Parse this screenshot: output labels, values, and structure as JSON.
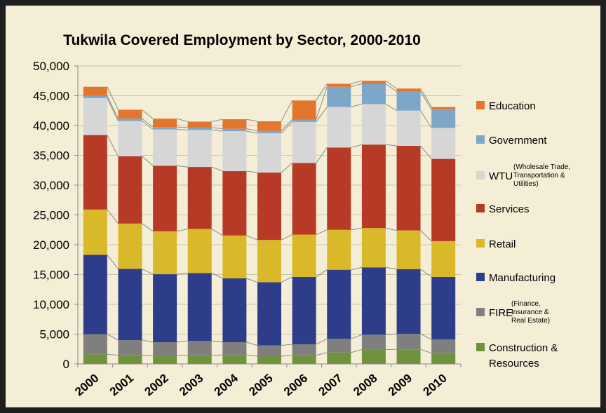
{
  "chart_data": {
    "type": "bar",
    "stacked": true,
    "title": "Tukwila Covered Employment by Sector, 2000-2010",
    "xlabel": "",
    "ylabel": "",
    "ylim": [
      0,
      50000
    ],
    "ytick_step": 5000,
    "y_tick_labels": [
      "0",
      "5,000",
      "10,000",
      "15,000",
      "20,000",
      "25,000",
      "30,000",
      "35,000",
      "40,000",
      "45,000",
      "50,000"
    ],
    "grid": true,
    "legend_position": "right",
    "categories": [
      "2000",
      "2001",
      "2002",
      "2003",
      "2004",
      "2005",
      "2006",
      "2007",
      "2008",
      "2009",
      "2010"
    ],
    "series": [
      {
        "name": "Construction & Resources",
        "note": "",
        "color": "#70923d",
        "values": [
          1600,
          1450,
          1400,
          1450,
          1500,
          1300,
          1450,
          1900,
          2400,
          2450,
          1800
        ]
      },
      {
        "name": "FIRE",
        "note": "(Finance, Insurance & Real Estate)",
        "color": "#7f7f7f",
        "values": [
          3400,
          2550,
          2250,
          2400,
          2150,
          1800,
          1850,
          2300,
          2500,
          2600,
          2300
        ]
      },
      {
        "name": "Manufacturing",
        "note": "",
        "color": "#2d3d8a",
        "values": [
          13300,
          11950,
          11400,
          11400,
          10700,
          10600,
          11300,
          11600,
          11300,
          10850,
          10500
        ]
      },
      {
        "name": "Retail",
        "note": "",
        "color": "#d9b92a",
        "values": [
          7600,
          7600,
          7200,
          7400,
          7200,
          7100,
          7100,
          6700,
          6600,
          6500,
          6000
        ]
      },
      {
        "name": "Services",
        "note": "",
        "color": "#b73a26",
        "values": [
          12500,
          11300,
          11000,
          10400,
          10800,
          11300,
          12000,
          13800,
          14000,
          14200,
          13800
        ]
      },
      {
        "name": "WTU",
        "note": "(Wholesale Trade, Transportation & Utilities)",
        "color": "#d6d6d6",
        "values": [
          6200,
          5900,
          6100,
          6200,
          6700,
          6600,
          6900,
          6800,
          6800,
          5900,
          5200
        ]
      },
      {
        "name": "Government",
        "note": "",
        "color": "#7da7c9",
        "values": [
          400,
          400,
          400,
          400,
          400,
          400,
          400,
          3400,
          3400,
          3200,
          3100
        ]
      },
      {
        "name": "Education",
        "note": "",
        "color": "#e3762f",
        "values": [
          1500,
          1500,
          1400,
          1000,
          1600,
          1600,
          3200,
          500,
          500,
          500,
          400
        ]
      }
    ]
  }
}
